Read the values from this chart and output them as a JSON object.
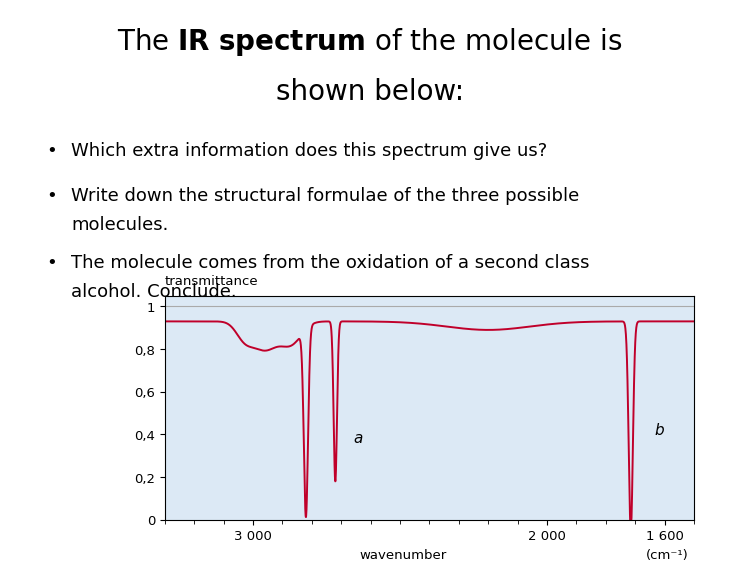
{
  "title_line1": "The $\\bf{IR\\ spectrum}$ of the molecule is",
  "title_line2": "shown below:",
  "bullet1": "Which extra information does this spectrum give us?",
  "bullet2a": "Write down the structural formulae of the three possible",
  "bullet2b": "molecules.",
  "bullet3a": "The molecule comes from the oxidation of a second class",
  "bullet3b": "alcohol. Conclude.",
  "background_color": "#ffffff",
  "text_color": "#000000",
  "graph_bg": "#dce9f5",
  "graph_line_color": "#c0002a",
  "graph_border_color": "#000000",
  "ylabel": "transmittance",
  "xlabel": "wavenumber",
  "xlabel2": "(cm⁻¹)",
  "yticks": [
    0,
    0.2,
    0.4,
    0.6,
    0.8,
    1
  ],
  "ytick_labels": [
    "0",
    "0,2",
    "0,4",
    "0,6",
    "0,8",
    "1"
  ],
  "xtick_labels": [
    "3 000",
    "2 000",
    "1 600"
  ],
  "xtick_positions": [
    3000,
    2000,
    1600
  ],
  "label_a": "a",
  "label_b": "b"
}
